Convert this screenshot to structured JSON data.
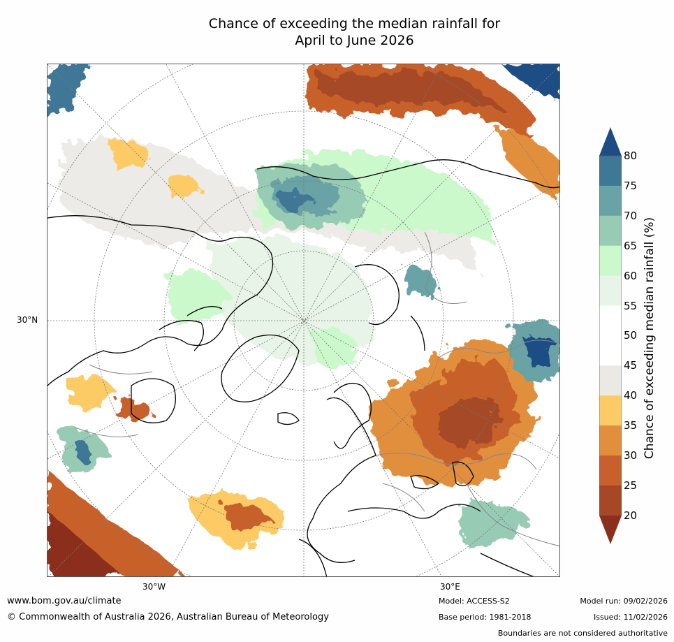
{
  "title_line1": "Chance of exceeding the median rainfall for",
  "title_line2": "April to June 2026",
  "axes": {
    "lat_label": "30°N",
    "lon_left": "30°W",
    "lon_right": "30°E"
  },
  "colorbar": {
    "label": "Chance of exceeding median rainfall (%)",
    "ticks": [
      "80",
      "75",
      "70",
      "65",
      "60",
      "55",
      "50",
      "45",
      "40",
      "35",
      "30",
      "25",
      "20"
    ],
    "colors": [
      "#1e4d84",
      "#3f7796",
      "#6aa3a5",
      "#98cbb4",
      "#ccf9cc",
      "#e8f4e8",
      "#ffffff",
      "#ffffff",
      "#ebe9e4",
      "#fccb66",
      "#e28f3d",
      "#c8602c",
      "#a64826",
      "#8b2f1c"
    ]
  },
  "footer": {
    "website": "www.bom.gov.au/climate",
    "copyright": "© Commonwealth of Australia 2026, Australian Bureau of Meteorology",
    "model": "Model: ACCESS-S2",
    "base_period": "Base period: 1981-2018",
    "model_run": "Model run: 09/02/2026",
    "issued": "Issued: 11/02/2026",
    "disclaimer": "Boundaries are not considered authoritative"
  }
}
